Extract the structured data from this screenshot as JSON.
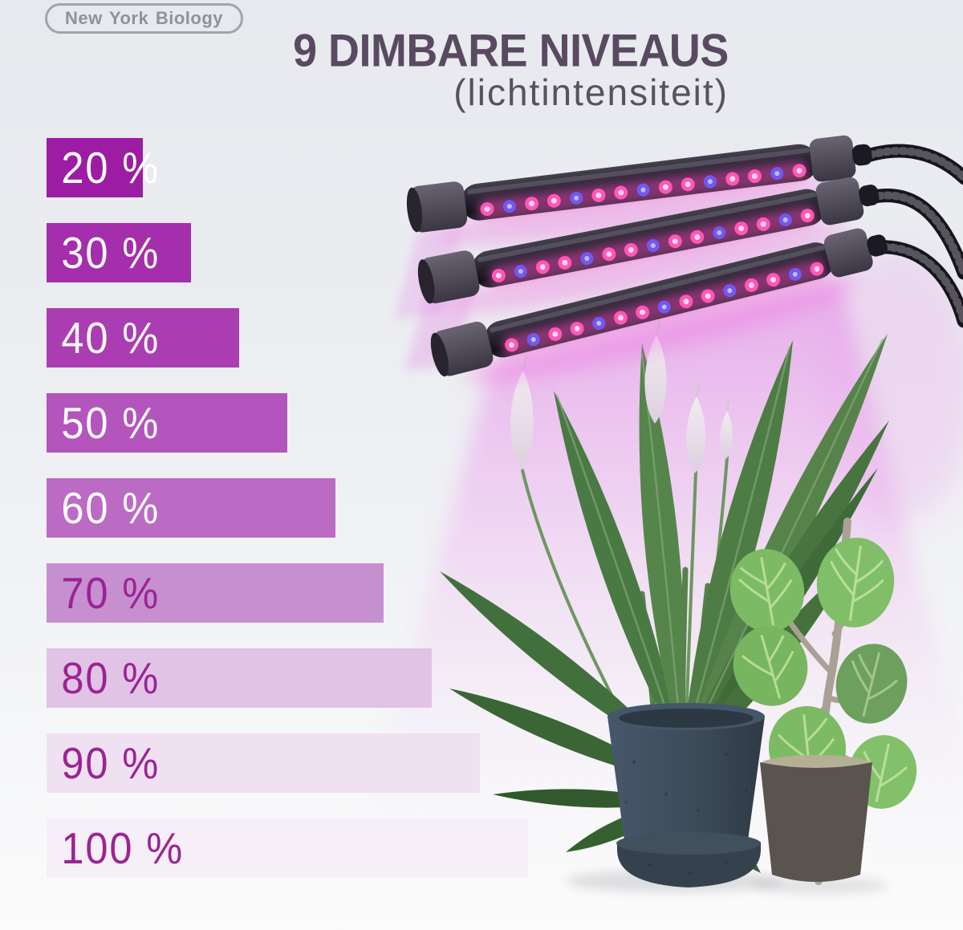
{
  "brand": {
    "logo_text": "New York Biology"
  },
  "header": {
    "title": "9 DIMBARE NIVEAUS",
    "subtitle": "(lichtintensiteit)"
  },
  "chart_data": {
    "type": "bar",
    "orientation": "horizontal",
    "title": "9 DIMBARE NIVEAUS",
    "subtitle": "(lichtintensiteit)",
    "categories": [
      "20 %",
      "30 %",
      "40 %",
      "50 %",
      "60 %",
      "70 %",
      "80 %",
      "90 %",
      "100 %"
    ],
    "values": [
      20,
      30,
      40,
      50,
      60,
      70,
      80,
      90,
      100
    ],
    "unit": "%",
    "xlim": [
      0,
      100
    ],
    "grid": false,
    "legend": false,
    "bar_colors": [
      "#9c1da3",
      "#a42eac",
      "#ab3db3",
      "#b355bd",
      "#bc6bc5",
      "#c690d0",
      "#e1c3e6",
      "#f0e1f2",
      "#f7eff8"
    ],
    "label_colors": [
      "#ffffff",
      "#ffffff",
      "#ffffff",
      "#ffffff",
      "#ffffff",
      "#9c2394",
      "#9c2394",
      "#9c2394",
      "#9c2394"
    ]
  },
  "illustration": {
    "grow_light_count": 3,
    "led_pink": "#ff57b5",
    "led_blue": "#7059f2",
    "beam_color": "#e583e6",
    "lamp_body_color": "#1c1a22",
    "gooseneck_color": "#17151c",
    "photo_pot_color": "#3d4b59",
    "vector_pot_color": "#59544d",
    "soil_band_color": "#b5b094",
    "lily_leaf_color": "#4e7c45",
    "vector_leaf_color": "#7cbb63",
    "flower_color": "#ece6ee"
  }
}
